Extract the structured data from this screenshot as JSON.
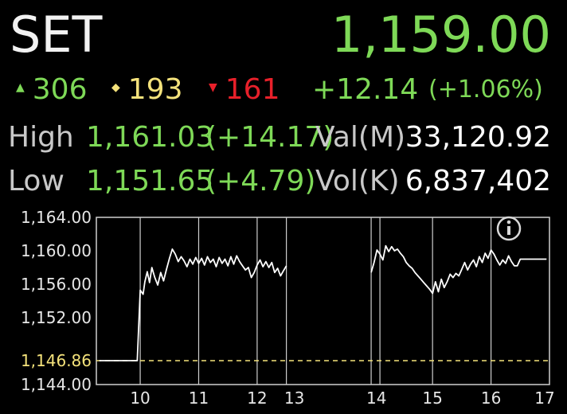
{
  "header": {
    "index_name": "SET",
    "index_value": "1,159.00"
  },
  "breadth": {
    "advances": "306",
    "unchanged": "193",
    "declines": "161",
    "change": "+12.14",
    "change_pct": "(+1.06%)"
  },
  "stats": {
    "high_label": "High",
    "high_value": "1,161.03",
    "high_change": "(+14.17)",
    "low_label": "Low",
    "low_value": "1,151.65",
    "low_change": "(+4.79)",
    "val_label": "Val(M)",
    "val_value": "33,120.92",
    "vol_label": "Vol(K)",
    "vol_value": "6,837,402"
  },
  "colors": {
    "up": "#7ed957",
    "unchanged": "#f4e27b",
    "down": "#e8202a",
    "text": "#ffffff",
    "label": "#c8c8c8",
    "prev_close": "#f4e27b"
  },
  "icons": {
    "info": "info-icon"
  },
  "chart_data": {
    "type": "line",
    "ylim": [
      1144.0,
      1164.0
    ],
    "xlim": [
      9.25,
      17.0
    ],
    "y_ticks": [
      "1,164.00",
      "1,160.00",
      "1,156.00",
      "1,152.00",
      "1,144.00"
    ],
    "x_ticks": [
      "10",
      "11",
      "12",
      "13",
      "14",
      "15",
      "16",
      "17"
    ],
    "prev_close": {
      "value": 1146.86,
      "label": "1,146.86"
    },
    "vertical_markers": [
      10.0,
      11.0,
      12.0,
      12.5,
      13.95,
      14.1,
      15.0,
      16.0
    ],
    "series": [
      {
        "segments": [
          [
            [
              9.3,
              1146.86
            ],
            [
              9.95,
              1146.86
            ],
            [
              9.95,
              1147.0
            ],
            [
              10.0,
              1155.3
            ],
            [
              10.05,
              1154.8
            ],
            [
              10.08,
              1156.3
            ],
            [
              10.12,
              1157.5
            ],
            [
              10.16,
              1156.2
            ],
            [
              10.2,
              1158.0
            ],
            [
              10.25,
              1156.8
            ],
            [
              10.3,
              1155.9
            ],
            [
              10.35,
              1157.4
            ],
            [
              10.4,
              1156.4
            ],
            [
              10.45,
              1157.8
            ],
            [
              10.5,
              1159.1
            ],
            [
              10.55,
              1160.2
            ],
            [
              10.6,
              1159.6
            ],
            [
              10.65,
              1158.7
            ],
            [
              10.7,
              1159.3
            ],
            [
              10.75,
              1158.8
            ],
            [
              10.8,
              1158.1
            ],
            [
              10.85,
              1159.0
            ],
            [
              10.9,
              1158.4
            ],
            [
              10.95,
              1159.2
            ],
            [
              11.0,
              1158.5
            ],
            [
              11.05,
              1159.1
            ],
            [
              11.1,
              1158.3
            ],
            [
              11.15,
              1159.3
            ],
            [
              11.2,
              1158.6
            ],
            [
              11.25,
              1159.0
            ],
            [
              11.3,
              1158.1
            ],
            [
              11.35,
              1159.2
            ],
            [
              11.4,
              1158.5
            ],
            [
              11.45,
              1159.0
            ],
            [
              11.5,
              1158.2
            ],
            [
              11.55,
              1159.3
            ],
            [
              11.6,
              1158.4
            ],
            [
              11.65,
              1159.4
            ],
            [
              11.7,
              1158.7
            ],
            [
              11.75,
              1158.2
            ],
            [
              11.8,
              1157.7
            ],
            [
              11.85,
              1158.0
            ],
            [
              11.9,
              1156.8
            ],
            [
              11.95,
              1157.4
            ],
            [
              12.0,
              1158.3
            ],
            [
              12.05,
              1158.9
            ],
            [
              12.1,
              1158.1
            ],
            [
              12.15,
              1158.7
            ],
            [
              12.2,
              1158.0
            ],
            [
              12.25,
              1158.6
            ],
            [
              12.3,
              1157.4
            ],
            [
              12.35,
              1157.9
            ],
            [
              12.4,
              1157.0
            ],
            [
              12.45,
              1157.6
            ],
            [
              12.5,
              1158.2
            ]
          ],
          [
            [
              13.95,
              1157.4
            ],
            [
              14.0,
              1158.6
            ],
            [
              14.05,
              1160.1
            ],
            [
              14.1,
              1159.6
            ],
            [
              14.15,
              1158.9
            ],
            [
              14.2,
              1160.6
            ],
            [
              14.25,
              1159.9
            ],
            [
              14.3,
              1160.5
            ],
            [
              14.35,
              1160.0
            ],
            [
              14.4,
              1160.2
            ],
            [
              14.45,
              1159.7
            ],
            [
              14.5,
              1159.3
            ],
            [
              14.55,
              1158.6
            ],
            [
              14.6,
              1158.2
            ],
            [
              14.65,
              1157.9
            ],
            [
              14.7,
              1157.4
            ],
            [
              14.75,
              1157.0
            ],
            [
              14.8,
              1156.6
            ],
            [
              14.85,
              1156.2
            ],
            [
              14.9,
              1155.8
            ],
            [
              14.95,
              1155.4
            ],
            [
              15.0,
              1154.9
            ],
            [
              15.05,
              1156.3
            ],
            [
              15.1,
              1155.1
            ],
            [
              15.15,
              1156.6
            ],
            [
              15.2,
              1155.6
            ],
            [
              15.25,
              1156.3
            ],
            [
              15.3,
              1157.2
            ],
            [
              15.35,
              1156.8
            ],
            [
              15.4,
              1157.3
            ],
            [
              15.45,
              1157.0
            ],
            [
              15.5,
              1157.8
            ],
            [
              15.55,
              1158.6
            ],
            [
              15.6,
              1157.7
            ],
            [
              15.65,
              1158.4
            ],
            [
              15.7,
              1158.9
            ],
            [
              15.75,
              1158.1
            ],
            [
              15.8,
              1159.3
            ],
            [
              15.85,
              1158.6
            ],
            [
              15.9,
              1159.7
            ],
            [
              15.95,
              1159.1
            ],
            [
              16.0,
              1160.1
            ],
            [
              16.05,
              1159.6
            ],
            [
              16.1,
              1158.9
            ],
            [
              16.15,
              1158.3
            ],
            [
              16.2,
              1158.9
            ],
            [
              16.25,
              1158.5
            ],
            [
              16.3,
              1159.4
            ],
            [
              16.35,
              1158.7
            ],
            [
              16.4,
              1158.2
            ],
            [
              16.45,
              1158.2
            ],
            [
              16.5,
              1159.0
            ],
            [
              16.6,
              1159.0
            ],
            [
              16.75,
              1159.0
            ],
            [
              16.95,
              1159.0
            ]
          ]
        ]
      }
    ]
  }
}
